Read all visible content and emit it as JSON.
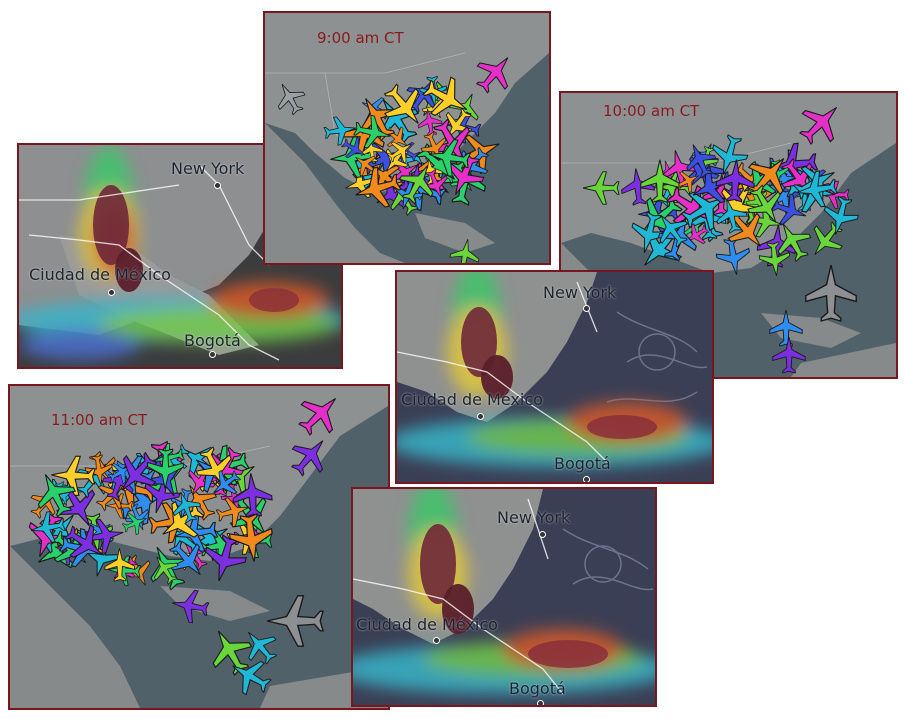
{
  "panels": {
    "p900": {
      "time_label": "9:00 am CT"
    },
    "p1000": {
      "time_label": "10:00 am CT"
    },
    "p1100": {
      "time_label": "11:00 am CT"
    }
  },
  "cities": {
    "new_york": "New York",
    "mexico_city": "Ciudad de México",
    "bogota": "Bogotá"
  },
  "colors": {
    "frame": "#7a1620",
    "time_label": "#8b1a1f",
    "ocean": "#4f6068",
    "land": "#8d9191"
  },
  "aircraft_palette": [
    "#3b50e0",
    "#7c2fe0",
    "#1fb8d6",
    "#f08a1c",
    "#2ad06a",
    "#e62fc8",
    "#ffd02a",
    "#2f8df0",
    "#69d63b"
  ]
}
